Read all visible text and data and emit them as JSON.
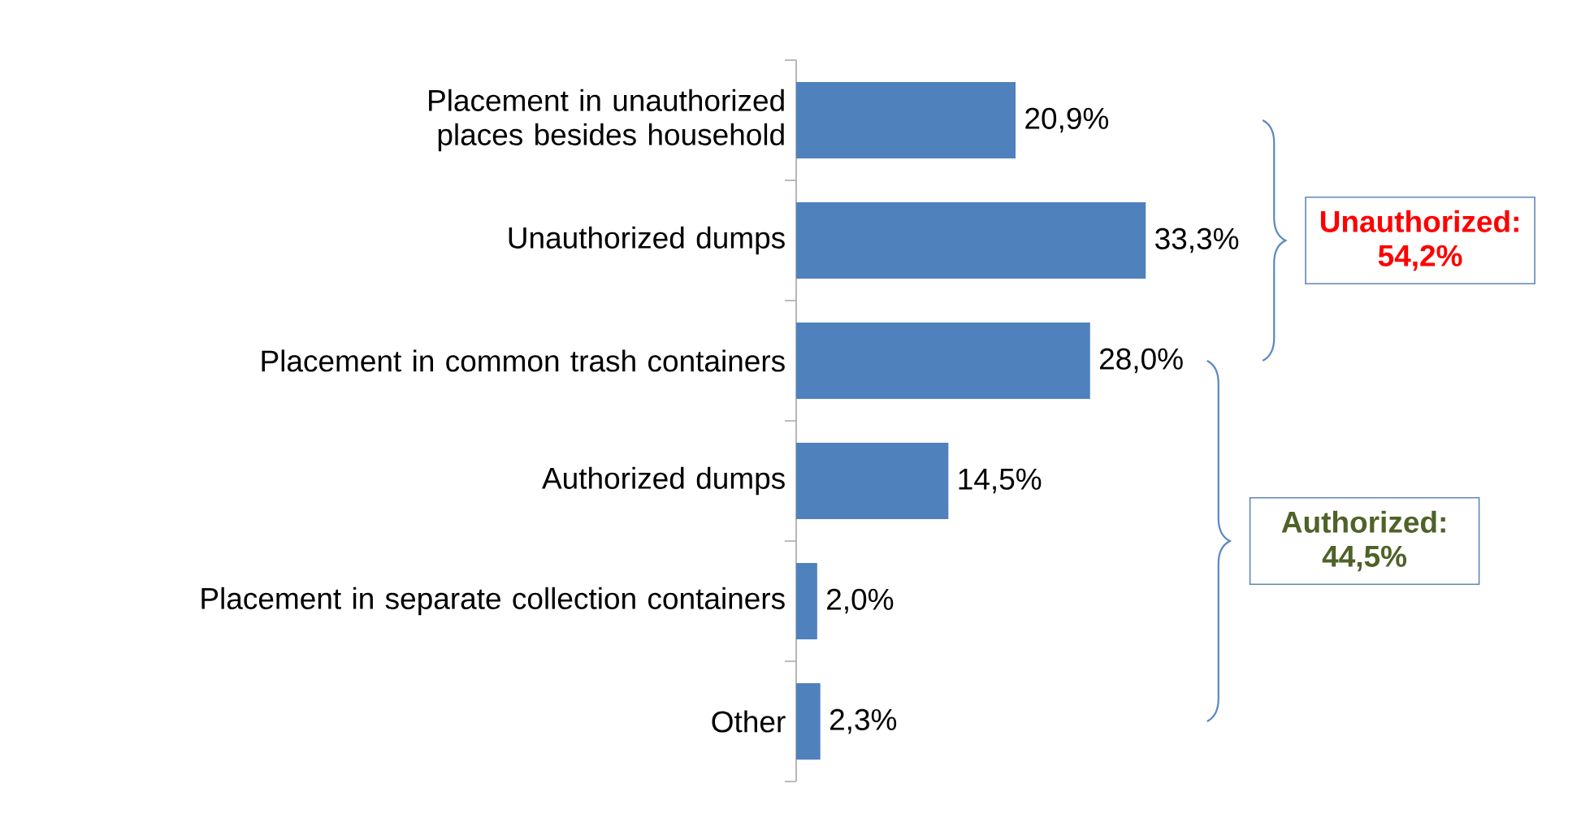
{
  "chart_data": {
    "type": "bar",
    "orientation": "horizontal",
    "categories": [
      "Placement in unauthorized places besides household",
      "Unauthorized dumps",
      "Placement in common trash containers",
      "Authorized dumps",
      "Placement in separate collection containers",
      "Other"
    ],
    "values": [
      20.9,
      33.3,
      28.0,
      14.5,
      2.0,
      2.3
    ],
    "value_labels": [
      "20,9%",
      "33,3%",
      "28,0%",
      "14,5%",
      "2,0%",
      "2,3%"
    ],
    "color": "#4F81BD",
    "annotations": [
      "Unauthorized: 54,2%",
      "Authorized: 44,5%"
    ]
  }
}
